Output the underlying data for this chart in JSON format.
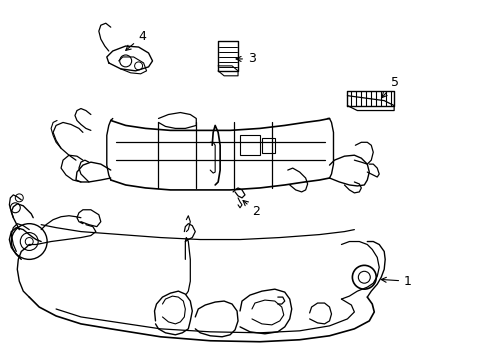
{
  "background_color": "#ffffff",
  "line_color": "#000000",
  "figure_width": 4.89,
  "figure_height": 3.6,
  "dpi": 100,
  "image_data": ""
}
